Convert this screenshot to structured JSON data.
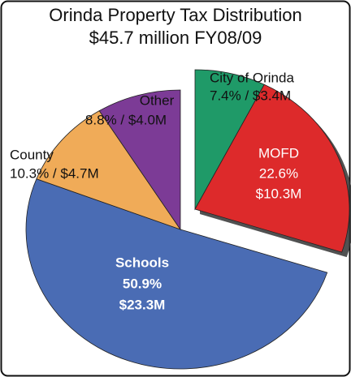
{
  "chart_data": {
    "type": "pie",
    "title": "Orinda Property Tax Distribution",
    "subtitle": "$45.7 million FY08/09",
    "categories": [
      "City of Orinda",
      "MOFD",
      "Schools",
      "County",
      "Other"
    ],
    "values": [
      7.4,
      22.6,
      50.9,
      10.3,
      8.8
    ],
    "value_labels": [
      [
        "7.4% / $3.4M"
      ],
      [
        "22.6%",
        "$10.3M"
      ],
      [
        "50.9%",
        "$23.3M"
      ],
      [
        "10.3% / $4.7M"
      ],
      [
        "8.8% / $4.0M"
      ]
    ],
    "colors": [
      "#1f9a68",
      "#dd2a2b",
      "#4a6cb4",
      "#f0ab58",
      "#7c3b96"
    ],
    "explode": [
      true,
      true,
      false,
      false,
      false
    ]
  }
}
